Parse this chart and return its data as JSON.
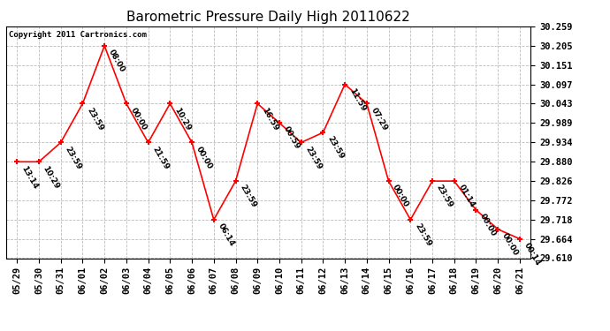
{
  "title": "Barometric Pressure Daily High 20110622",
  "copyright": "Copyright 2011 Cartronics.com",
  "x_labels": [
    "05/29",
    "05/30",
    "05/31",
    "06/01",
    "06/02",
    "06/03",
    "06/04",
    "06/05",
    "06/06",
    "06/07",
    "06/08",
    "06/09",
    "06/10",
    "06/11",
    "06/12",
    "06/13",
    "06/14",
    "06/15",
    "06/16",
    "06/17",
    "06/18",
    "06/19",
    "06/20",
    "06/21"
  ],
  "y_values": [
    29.88,
    29.88,
    29.934,
    30.043,
    30.205,
    30.043,
    29.934,
    30.043,
    29.934,
    29.718,
    29.826,
    30.043,
    29.989,
    29.934,
    29.962,
    30.097,
    30.043,
    29.826,
    29.718,
    29.826,
    29.826,
    29.745,
    29.691,
    29.664
  ],
  "time_labels": [
    "13:14",
    "10:29",
    "23:59",
    "23:59",
    "08:00",
    "00:00",
    "21:59",
    "10:29",
    "00:00",
    "06:14",
    "23:59",
    "16:59",
    "00:59",
    "23:59",
    "23:59",
    "11:59",
    "07:29",
    "00:00",
    "23:59",
    "23:59",
    "01:14",
    "00:00",
    "00:00",
    "00:14"
  ],
  "ylim_min": 29.61,
  "ylim_max": 30.259,
  "yticks": [
    29.61,
    29.664,
    29.718,
    29.772,
    29.826,
    29.88,
    29.934,
    29.989,
    30.043,
    30.097,
    30.151,
    30.205,
    30.259
  ],
  "line_color": "red",
  "marker_color": "red",
  "bg_color": "white",
  "plot_bg_color": "white",
  "grid_color": "#bbbbbb",
  "title_fontsize": 11,
  "tick_fontsize": 7.5,
  "label_fontsize": 6.5,
  "copyright_fontsize": 6.5
}
